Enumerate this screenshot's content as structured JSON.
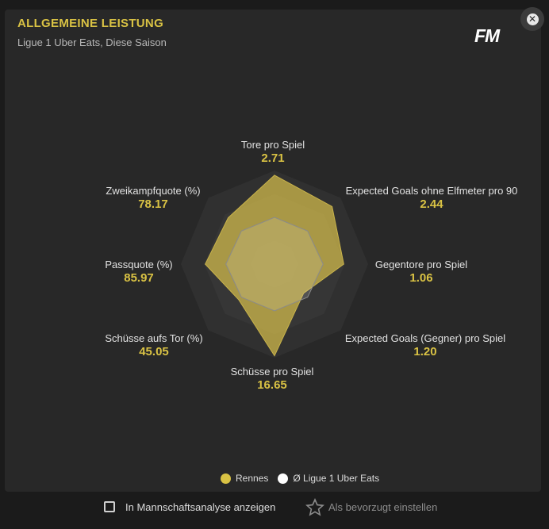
{
  "header": {
    "title": "ALLGEMEINE LEISTUNG",
    "subtitle": "Ligue 1 Uber Eats, Diese Saison",
    "logo": "FM",
    "close_icon": "close-icon"
  },
  "colors": {
    "accent": "#d9c244",
    "team_fill": "#c9b34a",
    "league_fill": "#ffffff",
    "panel": "#282828"
  },
  "chart_data": {
    "type": "radar",
    "title": "",
    "axes": [
      {
        "label": "Tore pro Spiel",
        "value": "2.71"
      },
      {
        "label": "Expected Goals ohne Elfmeter pro 90",
        "value": "2.44"
      },
      {
        "label": "Gegentore pro Spiel",
        "value": "1.06"
      },
      {
        "label": "Expected Goals (Gegner) pro Spiel",
        "value": "1.20"
      },
      {
        "label": "Schüsse pro Spiel",
        "value": "16.65"
      },
      {
        "label": "Schüsse aufs Tor (%)",
        "value": "45.05"
      },
      {
        "label": "Passquote (%)",
        "value": "85.97"
      },
      {
        "label": "Zweikampfquote (%)",
        "value": "78.17"
      }
    ],
    "series": [
      {
        "name": "Rennes",
        "normalized": [
          0.95,
          0.87,
          0.74,
          0.44,
          0.98,
          0.54,
          0.74,
          0.7
        ]
      },
      {
        "name": "Ø Ligue 1 Uber Eats",
        "normalized": [
          0.5,
          0.5,
          0.52,
          0.5,
          0.5,
          0.5,
          0.52,
          0.5
        ]
      }
    ],
    "rings": 4,
    "legend_position": "bottom"
  },
  "legend": {
    "team": "Rennes",
    "league": "Ø Ligue 1 Uber Eats"
  },
  "footer": {
    "checkbox_label": "In Mannschaftsanalyse anzeigen",
    "favorite_label": "Als bevorzugt einstellen"
  }
}
